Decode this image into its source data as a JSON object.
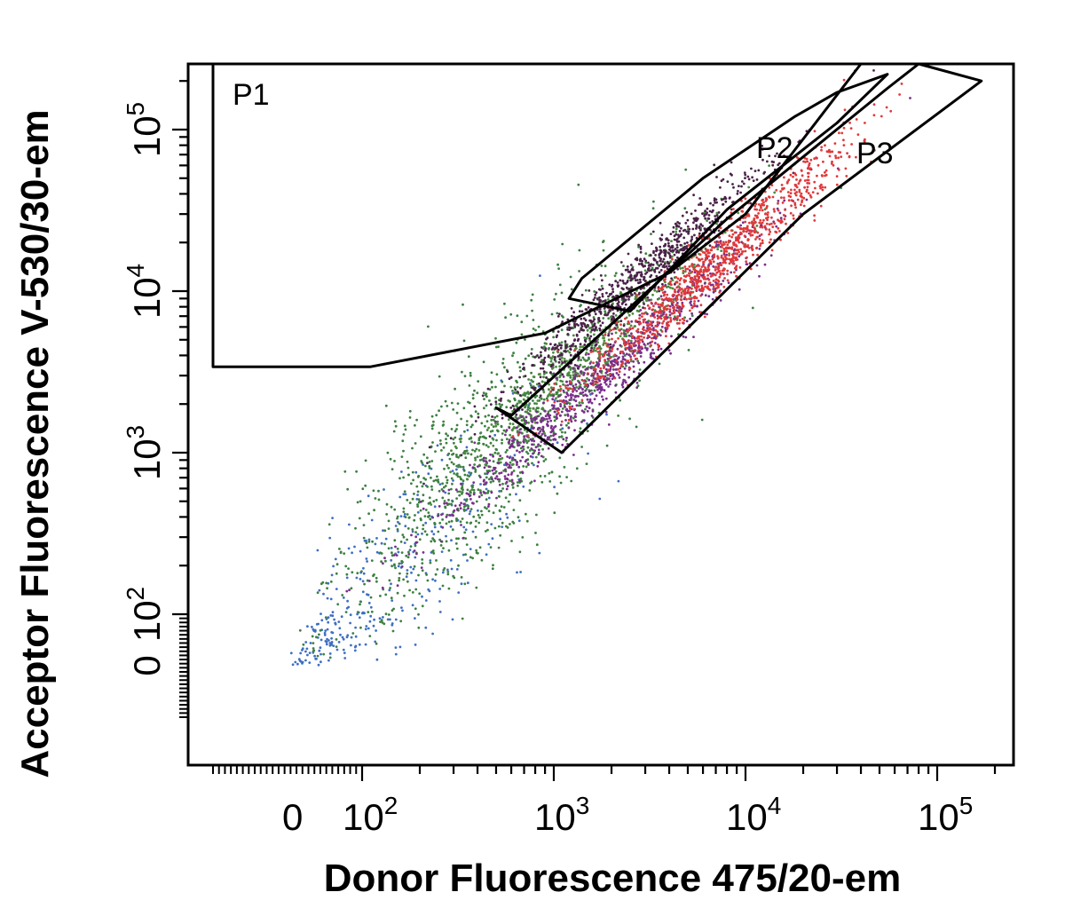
{
  "chart_data": {
    "type": "scatter",
    "title": "",
    "xlabel": "Donor Fluorescence 475/20-em",
    "ylabel": "Acceptor  Fluorescence V-530/30-em",
    "x_scale": "biexponential (log with zero region)",
    "y_scale": "biexponential (log with zero region)",
    "xlim": [
      -100,
      260000
    ],
    "ylim": [
      -100,
      260000
    ],
    "x_ticks": [
      {
        "value": 0,
        "base": "0",
        "exp": ""
      },
      {
        "value": 100,
        "base": "10",
        "exp": "2"
      },
      {
        "value": 1000,
        "base": "10",
        "exp": "3"
      },
      {
        "value": 10000,
        "base": "10",
        "exp": "4"
      },
      {
        "value": 100000,
        "base": "10",
        "exp": "5"
      }
    ],
    "y_ticks": [
      {
        "value": 0,
        "base": "0",
        "exp": ""
      },
      {
        "value": 100,
        "base": "10",
        "exp": "2"
      },
      {
        "value": 1000,
        "base": "10",
        "exp": "3"
      },
      {
        "value": 10000,
        "base": "10",
        "exp": "4"
      },
      {
        "value": 100000,
        "base": "10",
        "exp": "5"
      }
    ],
    "grid": false,
    "legend": "none",
    "gates": [
      {
        "name": "P1",
        "vertices": [
          [
            -100,
            3400
          ],
          [
            110,
            3400
          ],
          [
            900,
            5500
          ],
          [
            4000,
            13000
          ],
          [
            10000,
            30000
          ],
          [
            40000,
            260000
          ],
          [
            -100,
            260000
          ]
        ]
      },
      {
        "name": "P2",
        "vertices": [
          [
            1200,
            9000
          ],
          [
            2500,
            7500
          ],
          [
            8000,
            32000
          ],
          [
            30000,
            110000
          ],
          [
            55000,
            220000
          ],
          [
            30000,
            170000
          ],
          [
            18000,
            120000
          ],
          [
            6000,
            50000
          ],
          [
            1400,
            12000
          ]
        ]
      },
      {
        "name": "P3",
        "vertices": [
          [
            600,
            1700
          ],
          [
            8000,
            28000
          ],
          [
            55000,
            180000
          ],
          [
            80000,
            260000
          ],
          [
            170000,
            200000
          ],
          [
            20000,
            30000
          ],
          [
            1100,
            1000
          ],
          [
            500,
            1900
          ]
        ]
      }
    ],
    "populations": [
      {
        "color": "#3f6fc2",
        "count": 350,
        "x_center": 150,
        "y_center": 180,
        "x_spread": 0.45,
        "y_spread": 0.32
      },
      {
        "color": "#3d8040",
        "count": 1200,
        "x_center": 500,
        "y_center": 1100,
        "x_spread": 0.42,
        "y_spread": 0.32
      },
      {
        "color": "#4b8a3e",
        "count": 500,
        "x_center": 1800,
        "y_center": 5000,
        "x_spread": 0.35,
        "y_spread": 0.12
      },
      {
        "color": "#7a2e8c",
        "count": 900,
        "x_center": 1800,
        "y_center": 3000,
        "x_spread": 0.45,
        "y_spread": 0.1
      },
      {
        "color": "#4a2248",
        "count": 800,
        "x_center": 2600,
        "y_center": 11000,
        "x_spread": 0.35,
        "y_spread": 0.09
      },
      {
        "color": "#e0393b",
        "count": 1000,
        "x_center": 7000,
        "y_center": 15000,
        "x_spread": 0.35,
        "y_spread": 0.1
      }
    ]
  }
}
